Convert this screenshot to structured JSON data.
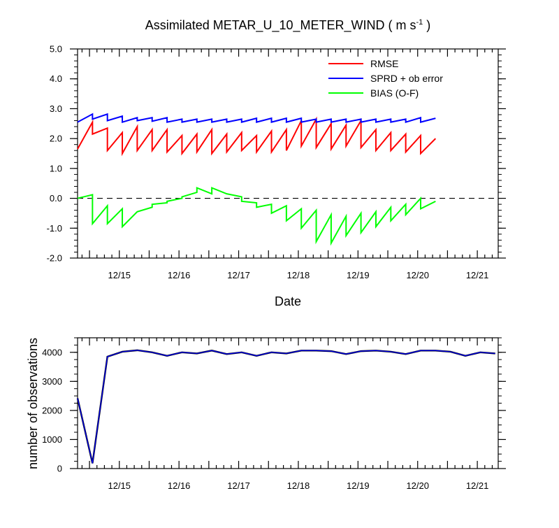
{
  "chart_data": [
    {
      "type": "line",
      "title_main": "Assimilated METAR_U_10_METER_WIND ( m s",
      "title_sup": "-1",
      "title_end": " )",
      "xlabel": "Date",
      "ylabel": "",
      "ylim": [
        -2.0,
        5.0
      ],
      "yticks": [
        "5.0",
        "4.0",
        "3.0",
        "2.0",
        "1.0",
        "0.0",
        "-1.0",
        "-2.0"
      ],
      "xlim": [
        14.3,
        21.35
      ],
      "xtick_labels": [
        "12/15",
        "12/16",
        "12/17",
        "12/18",
        "12/19",
        "12/20",
        "12/21"
      ],
      "legend": [
        "RMSE",
        "SPRD + ob error",
        "BIAS (O-F)"
      ],
      "colors": {
        "rmse": "#ff0000",
        "sprd": "#0000ff",
        "bias": "#00ff00"
      },
      "series": [
        {
          "name": "RMSE",
          "values": [
            1.65,
            2.55,
            2.15,
            2.35,
            1.6,
            2.2,
            1.5,
            2.4,
            1.6,
            2.3,
            1.6,
            2.3,
            1.55,
            2.1,
            1.5,
            2.15,
            1.55,
            2.3,
            1.5,
            2.15,
            1.55,
            2.2,
            1.6,
            2.1,
            1.55,
            2.25,
            1.55,
            2.3,
            1.6,
            2.6,
            1.75,
            2.65,
            1.7,
            2.5,
            1.65,
            2.45,
            1.75,
            2.6,
            1.7,
            2.3,
            1.6,
            2.2,
            1.6,
            2.15,
            1.55,
            2.1,
            1.5,
            2.0
          ]
        },
        {
          "name": "SPRD + ob error",
          "values": [
            2.55,
            2.82,
            2.65,
            2.82,
            2.6,
            2.75,
            2.55,
            2.7,
            2.6,
            2.7,
            2.58,
            2.7,
            2.55,
            2.65,
            2.55,
            2.65,
            2.55,
            2.65,
            2.55,
            2.65,
            2.55,
            2.65,
            2.55,
            2.68,
            2.55,
            2.68,
            2.55,
            2.68,
            2.55,
            2.68,
            2.55,
            2.65,
            2.55,
            2.65,
            2.55,
            2.65,
            2.55,
            2.65,
            2.55,
            2.65,
            2.55,
            2.65,
            2.55,
            2.65,
            2.55,
            2.7,
            2.55,
            2.68
          ]
        },
        {
          "name": "BIAS (O-F)",
          "values": [
            0.0,
            0.12,
            -0.85,
            -0.25,
            -0.85,
            -0.35,
            -0.95,
            -0.45,
            -0.45,
            -0.3,
            -0.2,
            -0.15,
            -0.1,
            0.0,
            0.05,
            0.2,
            0.35,
            0.15,
            0.35,
            0.15,
            0.15,
            0.05,
            -0.1,
            -0.15,
            -0.3,
            -0.2,
            -0.5,
            -0.25,
            -0.75,
            -0.35,
            -1.0,
            -0.4,
            -1.45,
            -0.55,
            -1.5,
            -0.6,
            -1.25,
            -0.5,
            -1.15,
            -0.45,
            -0.95,
            -0.3,
            -0.75,
            -0.2,
            -0.55,
            0.0,
            -0.35,
            -0.1
          ]
        }
      ]
    },
    {
      "type": "line",
      "title": "",
      "xlabel": "",
      "ylabel": "number of observations",
      "ylim": [
        0,
        4500
      ],
      "yticks": [
        "0",
        "1000",
        "2000",
        "3000",
        "4000"
      ],
      "xlim": [
        14.3,
        21.35
      ],
      "xtick_labels": [
        "12/15",
        "12/16",
        "12/17",
        "12/18",
        "12/19",
        "12/20",
        "12/21"
      ],
      "series": [
        {
          "name": "number of observations",
          "values": [
            2420,
            180,
            3850,
            4020,
            4070,
            4000,
            3880,
            4000,
            3960,
            4060,
            3940,
            4000,
            3880,
            4000,
            3960,
            4060,
            4060,
            4040,
            3940,
            4040,
            4060,
            4020,
            3940,
            4060,
            4060,
            4020,
            3880,
            4000,
            3960
          ]
        }
      ]
    }
  ]
}
